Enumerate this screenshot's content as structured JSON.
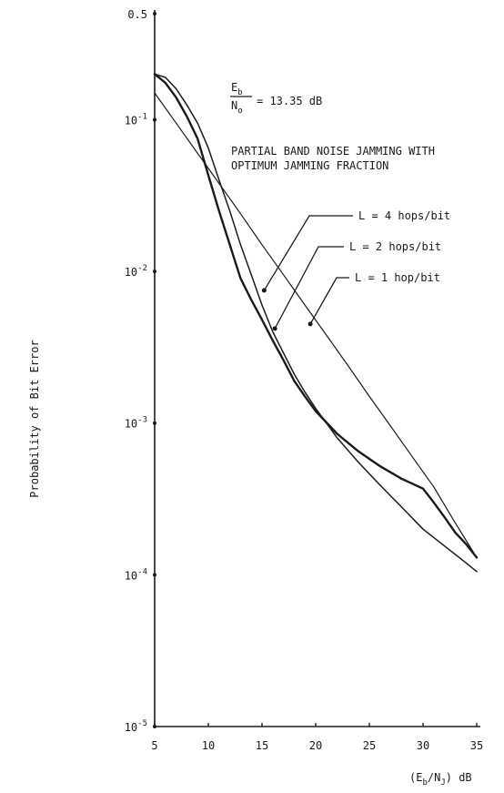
{
  "chart_data": {
    "type": "line",
    "xlabel": "(E_b/N_J) dB",
    "ylabel": "Probability of Bit Error",
    "xscale": "linear",
    "yscale": "log",
    "xlim": [
      5,
      35
    ],
    "ylim": [
      1e-05,
      0.5
    ],
    "grid": false,
    "x_ticks": [
      5,
      10,
      15,
      20,
      25,
      30,
      35
    ],
    "y_ticks": [
      {
        "value": 0.5,
        "mantissa": "0.5",
        "exp": ""
      },
      {
        "value": 0.1,
        "mantissa": "10",
        "exp": "-1"
      },
      {
        "value": 0.01,
        "mantissa": "10",
        "exp": "-2"
      },
      {
        "value": 0.001,
        "mantissa": "10",
        "exp": "-3"
      },
      {
        "value": 0.0001,
        "mantissa": "10",
        "exp": "-4"
      },
      {
        "value": 1e-05,
        "mantissa": "10",
        "exp": "-5"
      }
    ],
    "annotations": {
      "ratio_numerator": "E",
      "ratio_numerator_sub": "b",
      "ratio_denominator": "N",
      "ratio_denominator_sub": "o",
      "ratio_value": "= 13.35 dB",
      "description_line1": "PARTIAL BAND NOISE JAMMING WITH",
      "description_line2": "OPTIMUM JAMMING FRACTION"
    },
    "series": [
      {
        "name": "L = 4 hops/bit",
        "points": [
          [
            5,
            0.2
          ],
          [
            6,
            0.175
          ],
          [
            7,
            0.14
          ],
          [
            8,
            0.105
          ],
          [
            9,
            0.075
          ],
          [
            10,
            0.043
          ],
          [
            11,
            0.025
          ],
          [
            12,
            0.015
          ],
          [
            13,
            0.009
          ],
          [
            14,
            0.0065
          ],
          [
            15,
            0.0048
          ],
          [
            16,
            0.0035
          ],
          [
            17,
            0.0026
          ],
          [
            18,
            0.0019
          ],
          [
            19,
            0.0015
          ],
          [
            20,
            0.0012
          ],
          [
            22,
            0.00085
          ],
          [
            24,
            0.00065
          ],
          [
            26,
            0.00052
          ],
          [
            28,
            0.00043
          ],
          [
            30,
            0.00037
          ],
          [
            31,
            0.0003
          ],
          [
            32,
            0.00024
          ],
          [
            33,
            0.00019
          ],
          [
            34,
            0.00016
          ],
          [
            35,
            0.00013
          ]
        ],
        "stroke_width": 2.4
      },
      {
        "name": "L = 2 hops/bit",
        "points": [
          [
            5,
            0.2
          ],
          [
            6,
            0.19
          ],
          [
            7,
            0.16
          ],
          [
            8,
            0.125
          ],
          [
            9,
            0.095
          ],
          [
            10,
            0.065
          ],
          [
            11,
            0.04
          ],
          [
            12,
            0.025
          ],
          [
            13,
            0.015
          ],
          [
            14,
            0.0095
          ],
          [
            15,
            0.006
          ],
          [
            16,
            0.004
          ],
          [
            17,
            0.0029
          ],
          [
            18,
            0.0021
          ],
          [
            19,
            0.0016
          ],
          [
            20,
            0.00125
          ],
          [
            22,
            0.0008
          ],
          [
            24,
            0.00055
          ],
          [
            26,
            0.00039
          ],
          [
            28,
            0.00028
          ],
          [
            30,
            0.0002
          ],
          [
            32,
            0.000155
          ],
          [
            34,
            0.00012
          ],
          [
            35,
            0.000105
          ]
        ],
        "stroke_width": 1.5
      },
      {
        "name": "L = 1 hop/bit",
        "points": [
          [
            5,
            0.15
          ],
          [
            7,
            0.095
          ],
          [
            9,
            0.06
          ],
          [
            11,
            0.038
          ],
          [
            13,
            0.024
          ],
          [
            15,
            0.015
          ],
          [
            17,
            0.0095
          ],
          [
            19,
            0.006
          ],
          [
            21,
            0.0038
          ],
          [
            23,
            0.0024
          ],
          [
            25,
            0.0015
          ],
          [
            27,
            0.00095
          ],
          [
            29,
            0.0006
          ],
          [
            31,
            0.00038
          ],
          [
            33,
            0.00022
          ],
          [
            35,
            0.00013
          ]
        ],
        "stroke_width": 1.2
      }
    ],
    "legend_callouts": [
      {
        "label": "L = 4 hops/bit",
        "target": [
          15.2,
          0.0075
        ]
      },
      {
        "label": "L = 2 hops/bit",
        "target": [
          16.2,
          0.0042
        ]
      },
      {
        "label": "L = 1 hop/bit",
        "target": [
          19.5,
          0.0045
        ]
      }
    ]
  }
}
